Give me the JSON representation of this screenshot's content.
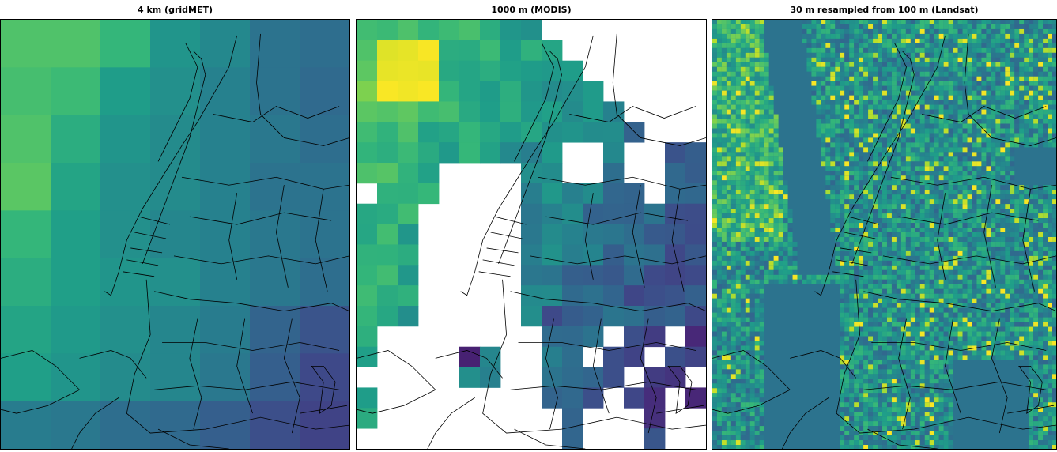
{
  "panels": [
    {
      "title": "4 km (gridMET)"
    },
    {
      "title": "1000 m (MODIS)"
    },
    {
      "title": "30 m resampled from 100 m (Landsat)"
    }
  ],
  "colormap": "viridis",
  "colors": {
    "high": "#fde725",
    "mid_high": "#7ad151",
    "mid": "#22a884",
    "mid_low": "#2a788e",
    "low": "#414487",
    "lowest": "#440154",
    "nodata": "#ffffff",
    "boundary": "#000000"
  }
}
